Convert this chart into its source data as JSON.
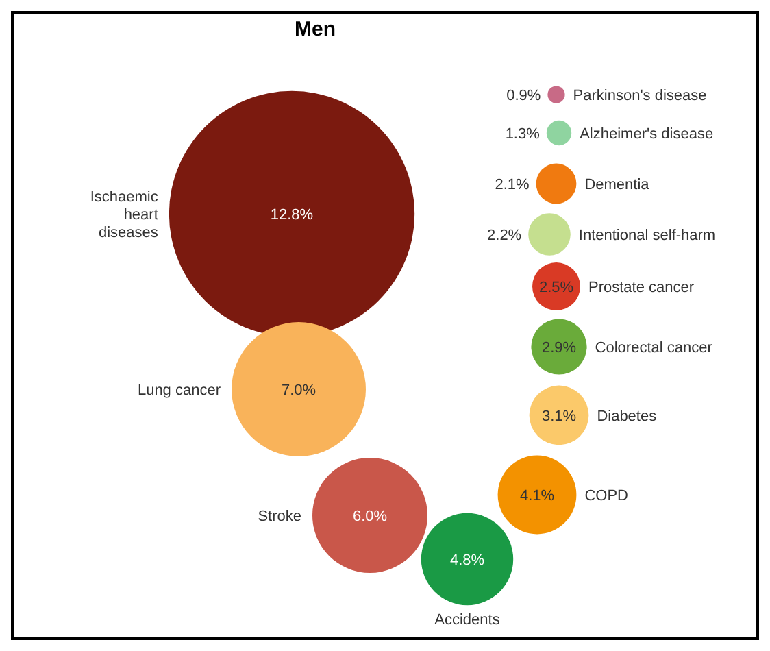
{
  "chart_data": {
    "type": "other",
    "title": "Men",
    "categories": [
      "Ischaemic heart diseases",
      "Lung cancer",
      "Stroke",
      "Accidents",
      "COPD",
      "Diabetes",
      "Colorectal cancer",
      "Prostate cancer",
      "Intentional self-harm",
      "Dementia",
      "Alzheimer's disease",
      "Parkinson's disease"
    ],
    "values": [
      12.8,
      7.0,
      6.0,
      4.8,
      4.1,
      3.1,
      2.9,
      2.5,
      2.2,
      2.1,
      1.3,
      0.9
    ],
    "value_labels": [
      "12.8%",
      "7.0%",
      "6.0%",
      "4.8%",
      "4.1%",
      "3.1%",
      "2.9%",
      "2.5%",
      "2.2%",
      "2.1%",
      "1.3%",
      "0.9%"
    ],
    "colors": [
      "#7b1a0f",
      "#f9b35a",
      "#c9574a",
      "#1a9a45",
      "#f39200",
      "#fbc96a",
      "#6aab3a",
      "#d93a25",
      "#c5df8f",
      "#f07a10",
      "#8fd4a0",
      "#c86a86"
    ]
  }
}
